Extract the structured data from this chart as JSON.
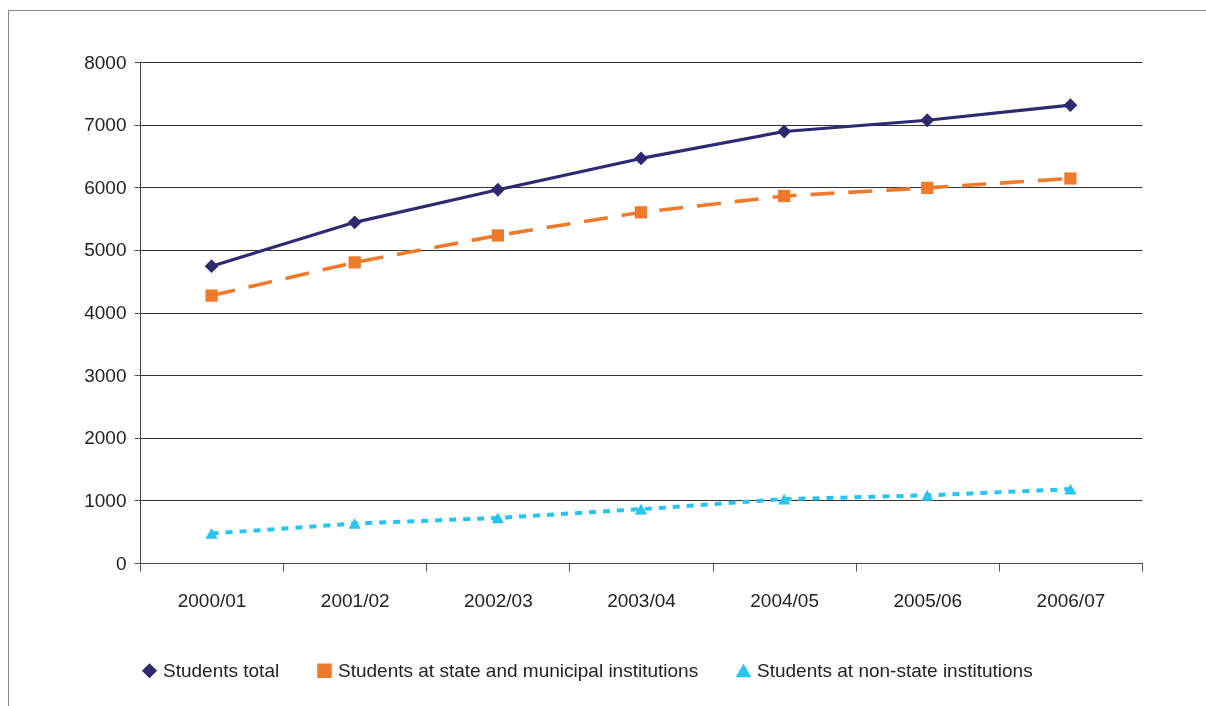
{
  "chart_data": {
    "type": "line",
    "categories": [
      "2000/01",
      "2001/02",
      "2002/03",
      "2003/04",
      "2004/05",
      "2005/06",
      "2006/07"
    ],
    "series": [
      {
        "name": "Students total",
        "color": "#2e2a72",
        "marker": "diamond",
        "line_style": "solid",
        "values": [
          4740,
          5440,
          5960,
          6460,
          6890,
          7070,
          7310
        ]
      },
      {
        "name": "Students at state and municipal institutions",
        "color": "#f07a2c",
        "marker": "square",
        "line_style": "dashed",
        "values": [
          4270,
          4800,
          5230,
          5600,
          5860,
          5990,
          6140
        ]
      },
      {
        "name": "Students at non-state institutions",
        "color": "#29c3f2",
        "marker": "triangle",
        "line_style": "dotted",
        "values": [
          470,
          630,
          720,
          860,
          1020,
          1080,
          1180
        ]
      }
    ],
    "ylim": [
      0,
      8000
    ],
    "yticks": [
      0,
      1000,
      2000,
      3000,
      4000,
      5000,
      6000,
      7000,
      8000
    ],
    "grid": "y",
    "legend": "bottom"
  }
}
